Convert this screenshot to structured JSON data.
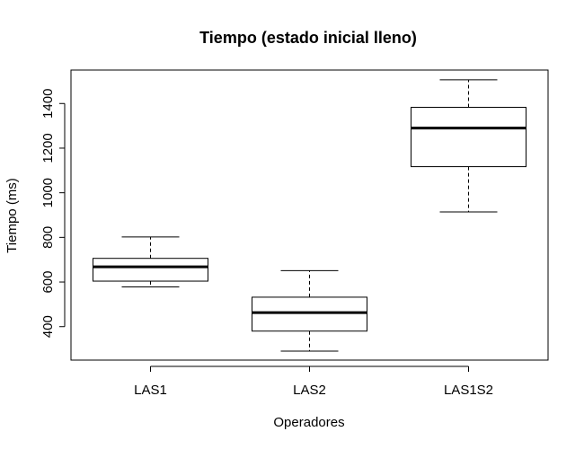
{
  "chart_data": {
    "type": "boxplot",
    "title": "Tiempo (estado inicial lleno)",
    "xlabel": "Operadores",
    "ylabel": "Tiempo (ms)",
    "ylim": [
      250,
      1550
    ],
    "yticks": [
      400,
      600,
      800,
      1000,
      1200,
      1400
    ],
    "grid": false,
    "categories": [
      "LAS1",
      "LAS2",
      "LAS1S2"
    ],
    "boxes": [
      {
        "category": "LAS1",
        "whisker_low": 578,
        "q1": 604,
        "median": 668,
        "q3": 706,
        "whisker_high": 802
      },
      {
        "category": "LAS2",
        "whisker_low": 290,
        "q1": 380,
        "median": 463,
        "q3": 532,
        "whisker_high": 651
      },
      {
        "category": "LAS1S2",
        "whisker_low": 914,
        "q1": 1117,
        "median": 1290,
        "q3": 1383,
        "whisker_high": 1506
      }
    ]
  }
}
